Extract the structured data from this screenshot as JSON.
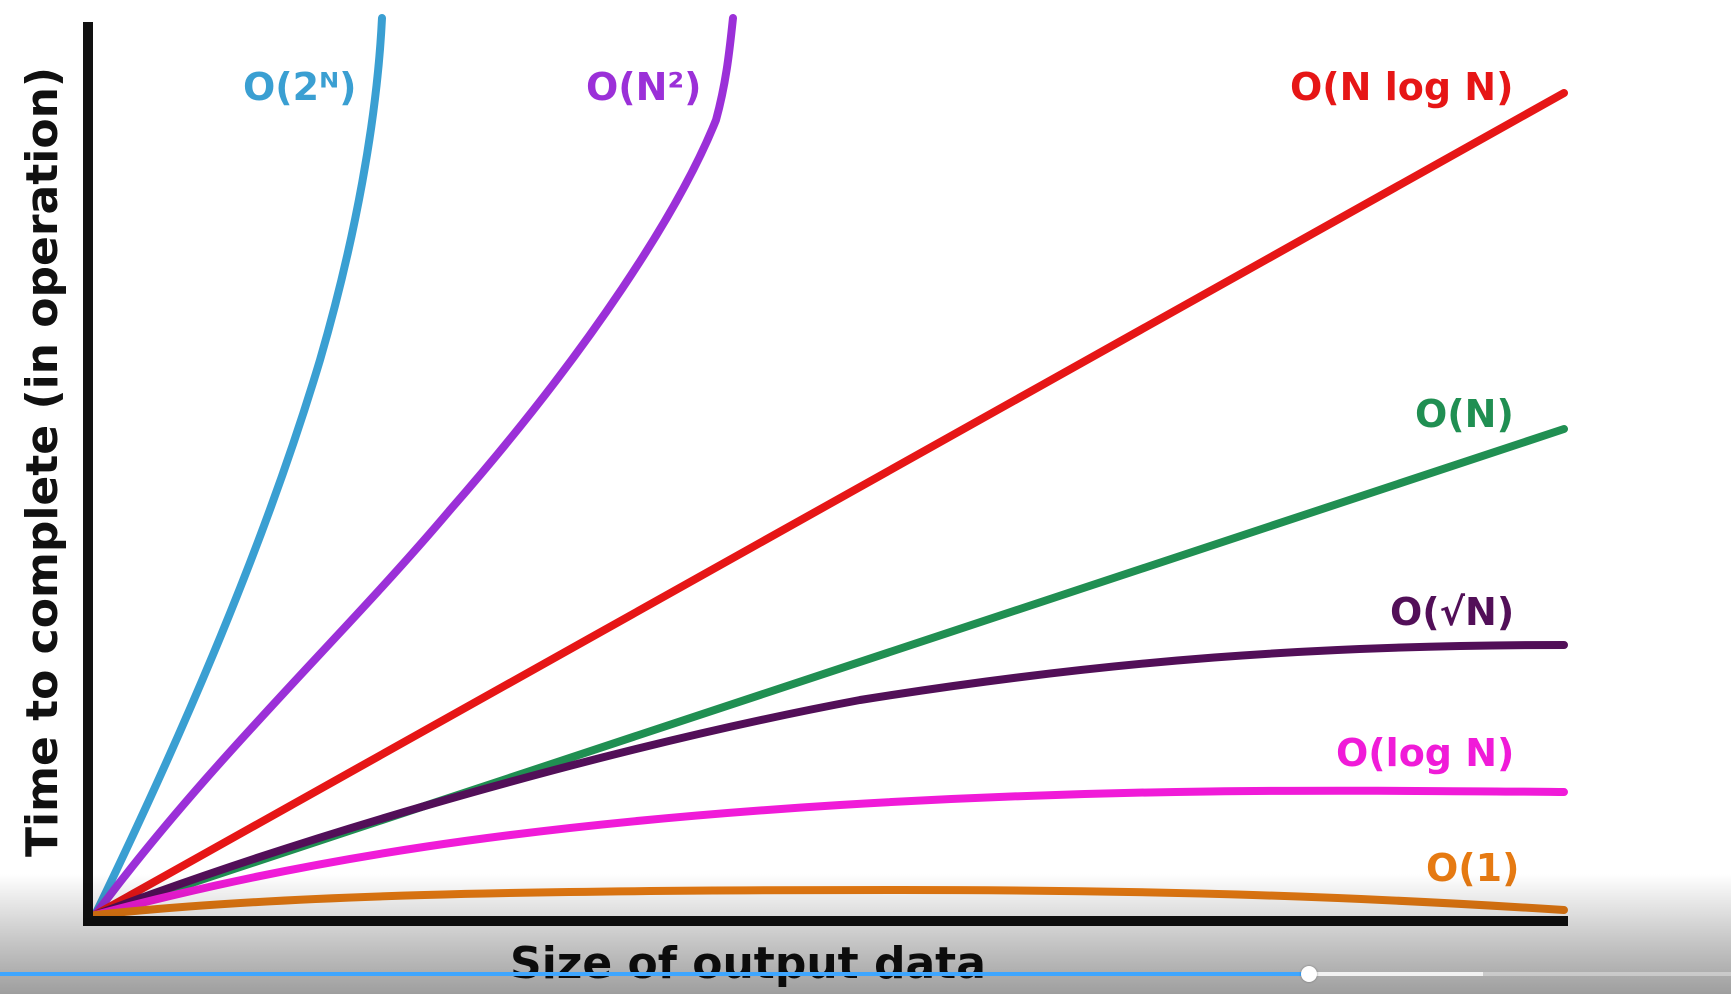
{
  "video_player": {
    "progress": {
      "played_fraction": 0.756,
      "buffered_fraction": 0.857
    }
  },
  "chart_data": {
    "type": "line",
    "title": "",
    "xlabel": "Size of output data",
    "ylabel": "Time to complete (in operation)",
    "grid": false,
    "legend": "inline-labels",
    "series": [
      {
        "name": "O(2ᴺ)",
        "color": "#3a9fd2",
        "function": "exponential"
      },
      {
        "name": "O(N²)",
        "color": "#9b30d8",
        "function": "quadratic"
      },
      {
        "name": "O(N log N)",
        "color": "#e61616",
        "function": "n-log-n"
      },
      {
        "name": "O(N)",
        "color": "#208f52",
        "function": "linear"
      },
      {
        "name": "O(√N)",
        "color": "#520f58",
        "function": "sqrt"
      },
      {
        "name": "O(log N)",
        "color": "#f01bd8",
        "function": "logarithmic"
      },
      {
        "name": "O(1)",
        "color": "#e67a12",
        "function": "constant"
      }
    ]
  }
}
